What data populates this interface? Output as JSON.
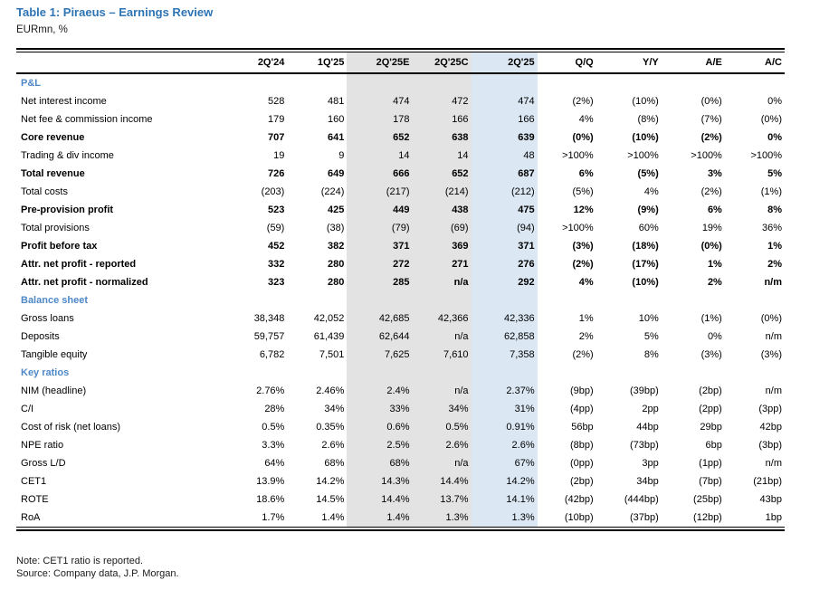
{
  "title": "Table 1: Piraeus – Earnings Review",
  "subtitle": "EURmn, %",
  "colors": {
    "title_blue": "#2e74b5",
    "section_blue": "#4e88c7",
    "shade_gray": "#e3e3e3",
    "shade_blue": "#dbe8f4"
  },
  "table": {
    "columns": [
      "",
      "2Q'24",
      "1Q'25",
      "2Q'25E",
      "2Q'25C",
      "2Q'25",
      "Q/Q",
      "Y/Y",
      "A/E",
      "A/C"
    ],
    "sections": [
      {
        "name": "P&L",
        "rows": [
          {
            "label": "Net interest income",
            "bold": false,
            "values": [
              "528",
              "481",
              "474",
              "472",
              "474",
              "(2%)",
              "(10%)",
              "(0%)",
              "0%"
            ]
          },
          {
            "label": "Net fee & commission income",
            "bold": false,
            "values": [
              "179",
              "160",
              "178",
              "166",
              "166",
              "4%",
              "(8%)",
              "(7%)",
              "(0%)"
            ]
          },
          {
            "label": "Core revenue",
            "bold": true,
            "values": [
              "707",
              "641",
              "652",
              "638",
              "639",
              "(0%)",
              "(10%)",
              "(2%)",
              "0%"
            ]
          },
          {
            "label": "Trading & div income",
            "bold": false,
            "values": [
              "19",
              "9",
              "14",
              "14",
              "48",
              ">100%",
              ">100%",
              ">100%",
              ">100%"
            ]
          },
          {
            "label": "Total revenue",
            "bold": true,
            "values": [
              "726",
              "649",
              "666",
              "652",
              "687",
              "6%",
              "(5%)",
              "3%",
              "5%"
            ]
          },
          {
            "label": "Total costs",
            "bold": false,
            "values": [
              "(203)",
              "(224)",
              "(217)",
              "(214)",
              "(212)",
              "(5%)",
              "4%",
              "(2%)",
              "(1%)"
            ]
          },
          {
            "label": "Pre-provision profit",
            "bold": true,
            "values": [
              "523",
              "425",
              "449",
              "438",
              "475",
              "12%",
              "(9%)",
              "6%",
              "8%"
            ]
          },
          {
            "label": "Total provisions",
            "bold": false,
            "values": [
              "(59)",
              "(38)",
              "(79)",
              "(69)",
              "(94)",
              ">100%",
              "60%",
              "19%",
              "36%"
            ]
          },
          {
            "label": "Profit before tax",
            "bold": true,
            "values": [
              "452",
              "382",
              "371",
              "369",
              "371",
              "(3%)",
              "(18%)",
              "(0%)",
              "1%"
            ]
          },
          {
            "label": "Attr. net profit - reported",
            "bold": true,
            "values": [
              "332",
              "280",
              "272",
              "271",
              "276",
              "(2%)",
              "(17%)",
              "1%",
              "2%"
            ]
          },
          {
            "label": "Attr. net profit - normalized",
            "bold": true,
            "values": [
              "323",
              "280",
              "285",
              "n/a",
              "292",
              "4%",
              "(10%)",
              "2%",
              "n/m"
            ]
          }
        ]
      },
      {
        "name": "Balance sheet",
        "rows": [
          {
            "label": "Gross loans",
            "bold": false,
            "values": [
              "38,348",
              "42,052",
              "42,685",
              "42,366",
              "42,336",
              "1%",
              "10%",
              "(1%)",
              "(0%)"
            ]
          },
          {
            "label": "Deposits",
            "bold": false,
            "values": [
              "59,757",
              "61,439",
              "62,644",
              "n/a",
              "62,858",
              "2%",
              "5%",
              "0%",
              "n/m"
            ]
          },
          {
            "label": "Tangible equity",
            "bold": false,
            "values": [
              "6,782",
              "7,501",
              "7,625",
              "7,610",
              "7,358",
              "(2%)",
              "8%",
              "(3%)",
              "(3%)"
            ]
          }
        ]
      },
      {
        "name": "Key ratios",
        "rows": [
          {
            "label": "NIM (headline)",
            "bold": false,
            "values": [
              "2.76%",
              "2.46%",
              "2.4%",
              "n/a",
              "2.37%",
              "(9bp)",
              "(39bp)",
              "(2bp)",
              "n/m"
            ]
          },
          {
            "label": "C/I",
            "bold": false,
            "values": [
              "28%",
              "34%",
              "33%",
              "34%",
              "31%",
              "(4pp)",
              "2pp",
              "(2pp)",
              "(3pp)"
            ]
          },
          {
            "label": "Cost of risk (net loans)",
            "bold": false,
            "values": [
              "0.5%",
              "0.35%",
              "0.6%",
              "0.5%",
              "0.91%",
              "56bp",
              "44bp",
              "29bp",
              "42bp"
            ]
          },
          {
            "label": "NPE ratio",
            "bold": false,
            "values": [
              "3.3%",
              "2.6%",
              "2.5%",
              "2.6%",
              "2.6%",
              "(8bp)",
              "(73bp)",
              "6bp",
              "(3bp)"
            ]
          },
          {
            "label": "Gross L/D",
            "bold": false,
            "values": [
              "64%",
              "68%",
              "68%",
              "n/a",
              "67%",
              "(0pp)",
              "3pp",
              "(1pp)",
              "n/m"
            ]
          },
          {
            "label": "CET1",
            "bold": false,
            "values": [
              "13.9%",
              "14.2%",
              "14.3%",
              "14.4%",
              "14.2%",
              "(2bp)",
              "34bp",
              "(7bp)",
              "(21bp)"
            ]
          },
          {
            "label": "ROTE",
            "bold": false,
            "values": [
              "18.6%",
              "14.5%",
              "14.4%",
              "13.7%",
              "14.1%",
              "(42bp)",
              "(444bp)",
              "(25bp)",
              "43bp"
            ]
          },
          {
            "label": "RoA",
            "bold": false,
            "values": [
              "1.7%",
              "1.4%",
              "1.4%",
              "1.3%",
              "1.3%",
              "(10bp)",
              "(37bp)",
              "(12bp)",
              "1bp"
            ]
          }
        ]
      }
    ]
  },
  "notes": {
    "note": "Note: CET1 ratio is reported.",
    "source": "Source: Company data, J.P. Morgan."
  }
}
